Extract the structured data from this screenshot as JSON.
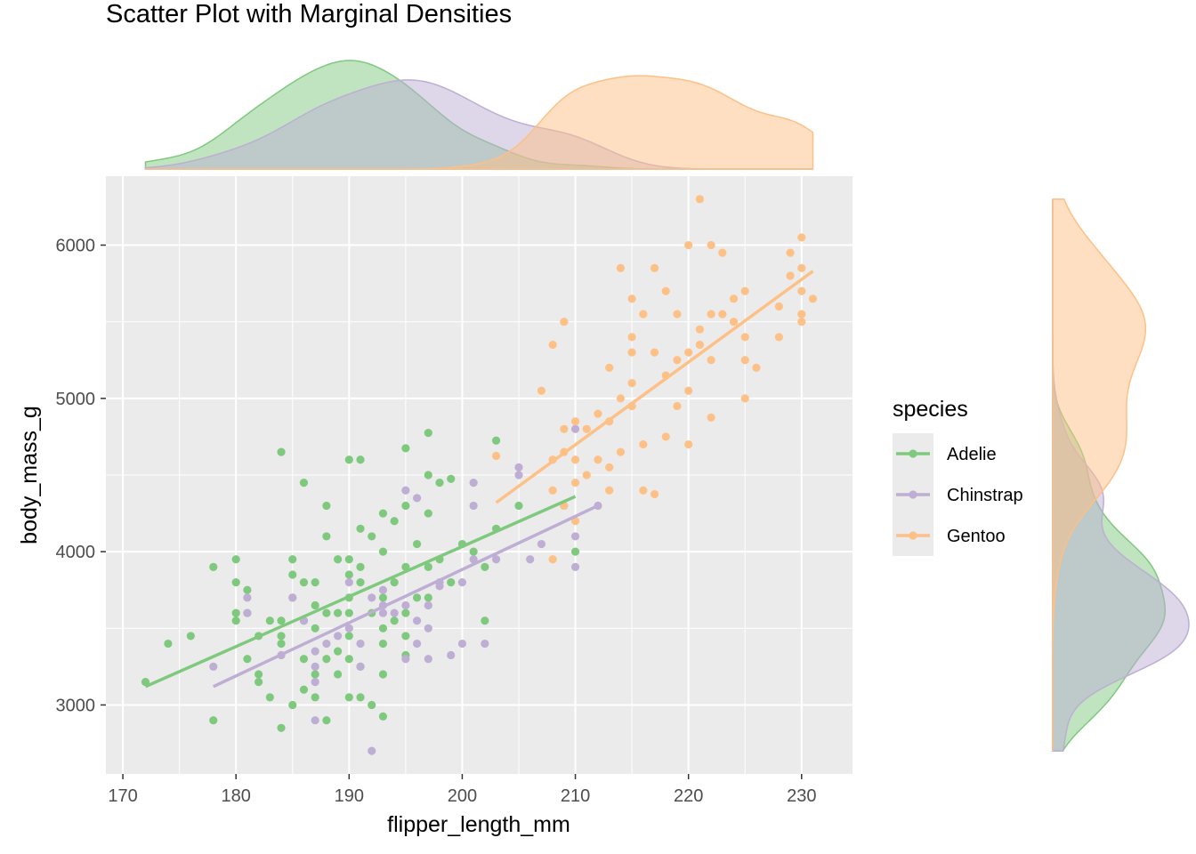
{
  "chart_data": {
    "type": "scatter",
    "title": "Scatter Plot with Marginal Densities",
    "xlabel": "flipper_length_mm",
    "ylabel": "body_mass_g",
    "xlim": [
      168.5,
      234.5
    ],
    "ylim": [
      2550,
      6450
    ],
    "xticks": [
      170,
      180,
      190,
      200,
      210,
      220,
      230
    ],
    "yticks": [
      3000,
      4000,
      5000,
      6000
    ],
    "grid": true,
    "legend": {
      "title": "species",
      "position": "right"
    },
    "marginal": {
      "top": "density of flipper_length_mm by species",
      "right": "density of body_mass_g by species"
    },
    "series": [
      {
        "name": "Adelie",
        "color": "#7fc97f",
        "trend": {
          "x": [
            172,
            210
          ],
          "y": [
            3120,
            4360
          ]
        },
        "points": [
          [
            172,
            3150
          ],
          [
            174,
            3400
          ],
          [
            176,
            3450
          ],
          [
            178,
            3900
          ],
          [
            178,
            2900
          ],
          [
            180,
            3950
          ],
          [
            180,
            3800
          ],
          [
            180,
            3600
          ],
          [
            180,
            3550
          ],
          [
            181,
            3300
          ],
          [
            181,
            3750
          ],
          [
            181,
            3600
          ],
          [
            182,
            3200
          ],
          [
            182,
            3150
          ],
          [
            182,
            3450
          ],
          [
            183,
            3550
          ],
          [
            183,
            3050
          ],
          [
            184,
            4650
          ],
          [
            184,
            3550
          ],
          [
            184,
            3400
          ],
          [
            184,
            3450
          ],
          [
            184,
            2850
          ],
          [
            185,
            3850
          ],
          [
            185,
            3950
          ],
          [
            185,
            3000
          ],
          [
            185,
            3700
          ],
          [
            186,
            4450
          ],
          [
            186,
            3800
          ],
          [
            186,
            3550
          ],
          [
            186,
            3300
          ],
          [
            186,
            3100
          ],
          [
            187,
            3800
          ],
          [
            187,
            3500
          ],
          [
            187,
            3200
          ],
          [
            187,
            3050
          ],
          [
            187,
            3650
          ],
          [
            188,
            4300
          ],
          [
            188,
            4100
          ],
          [
            188,
            3600
          ],
          [
            188,
            2900
          ],
          [
            188,
            3300
          ],
          [
            189,
            3950
          ],
          [
            189,
            3600
          ],
          [
            189,
            3350
          ],
          [
            189,
            3200
          ],
          [
            190,
            4600
          ],
          [
            190,
            3950
          ],
          [
            190,
            3850
          ],
          [
            190,
            3700
          ],
          [
            190,
            3600
          ],
          [
            190,
            3450
          ],
          [
            190,
            3300
          ],
          [
            190,
            3050
          ],
          [
            191,
            4600
          ],
          [
            191,
            4150
          ],
          [
            191,
            3900
          ],
          [
            191,
            3800
          ],
          [
            191,
            3250
          ],
          [
            191,
            3050
          ],
          [
            192,
            4100
          ],
          [
            192,
            3600
          ],
          [
            192,
            3000
          ],
          [
            193,
            4250
          ],
          [
            193,
            4000
          ],
          [
            193,
            3700
          ],
          [
            193,
            3500
          ],
          [
            193,
            3400
          ],
          [
            193,
            3200
          ],
          [
            193,
            2925
          ],
          [
            194,
            4200
          ],
          [
            194,
            3800
          ],
          [
            194,
            3550
          ],
          [
            195,
            4675
          ],
          [
            195,
            4300
          ],
          [
            195,
            3900
          ],
          [
            195,
            3600
          ],
          [
            195,
            3450
          ],
          [
            195,
            3325
          ],
          [
            196,
            4050
          ],
          [
            196,
            3700
          ],
          [
            197,
            4775
          ],
          [
            197,
            4500
          ],
          [
            197,
            4250
          ],
          [
            197,
            3900
          ],
          [
            197,
            3700
          ],
          [
            198,
            4450
          ],
          [
            198,
            3950
          ],
          [
            199,
            4475
          ],
          [
            199,
            3800
          ],
          [
            200,
            4050
          ],
          [
            201,
            4000
          ],
          [
            202,
            3550
          ],
          [
            202,
            3900
          ],
          [
            203,
            4725
          ],
          [
            203,
            4150
          ],
          [
            205,
            4300
          ],
          [
            210,
            4000
          ]
        ]
      },
      {
        "name": "Chinstrap",
        "color": "#beaed4",
        "trend": {
          "x": [
            178,
            212
          ],
          "y": [
            3120,
            4300
          ]
        },
        "points": [
          [
            178,
            3250
          ],
          [
            181,
            3700
          ],
          [
            181,
            3600
          ],
          [
            184,
            3325
          ],
          [
            185,
            3700
          ],
          [
            186,
            3550
          ],
          [
            187,
            3350
          ],
          [
            187,
            3250
          ],
          [
            187,
            3150
          ],
          [
            187,
            2900
          ],
          [
            188,
            3400
          ],
          [
            189,
            3450
          ],
          [
            190,
            3800
          ],
          [
            190,
            3500
          ],
          [
            191,
            3400
          ],
          [
            191,
            3250
          ],
          [
            192,
            3700
          ],
          [
            192,
            2700
          ],
          [
            193,
            3750
          ],
          [
            193,
            3650
          ],
          [
            193,
            3600
          ],
          [
            194,
            3600
          ],
          [
            195,
            4400
          ],
          [
            195,
            3650
          ],
          [
            195,
            3300
          ],
          [
            196,
            4350
          ],
          [
            196,
            3550
          ],
          [
            196,
            3400
          ],
          [
            197,
            3300
          ],
          [
            197,
            3500
          ],
          [
            197,
            3650
          ],
          [
            198,
            3800
          ],
          [
            198,
            3775
          ],
          [
            199,
            3325
          ],
          [
            200,
            3400
          ],
          [
            200,
            3800
          ],
          [
            201,
            4450
          ],
          [
            201,
            4300
          ],
          [
            201,
            3950
          ],
          [
            202,
            3400
          ],
          [
            203,
            3950
          ],
          [
            205,
            4550
          ],
          [
            205,
            4500
          ],
          [
            206,
            3950
          ],
          [
            207,
            4050
          ],
          [
            209,
            4300
          ],
          [
            210,
            4800
          ],
          [
            210,
            4100
          ],
          [
            210,
            3900
          ],
          [
            212,
            4300
          ]
        ]
      },
      {
        "name": "Gentoo",
        "color": "#fdc086",
        "trend": {
          "x": [
            203,
            231
          ],
          "y": [
            4320,
            5830
          ]
        },
        "points": [
          [
            203,
            4625
          ],
          [
            207,
            5050
          ],
          [
            208,
            5350
          ],
          [
            208,
            4600
          ],
          [
            208,
            4400
          ],
          [
            208,
            3950
          ],
          [
            209,
            5500
          ],
          [
            209,
            4800
          ],
          [
            209,
            4650
          ],
          [
            209,
            4300
          ],
          [
            210,
            4850
          ],
          [
            210,
            4600
          ],
          [
            210,
            4450
          ],
          [
            210,
            4200
          ],
          [
            211,
            4800
          ],
          [
            211,
            4500
          ],
          [
            212,
            4900
          ],
          [
            212,
            4600
          ],
          [
            213,
            5200
          ],
          [
            213,
            4850
          ],
          [
            213,
            4550
          ],
          [
            213,
            4400
          ],
          [
            214,
            5850
          ],
          [
            214,
            5000
          ],
          [
            214,
            4650
          ],
          [
            215,
            5650
          ],
          [
            215,
            5400
          ],
          [
            215,
            5300
          ],
          [
            215,
            5100
          ],
          [
            215,
            4950
          ],
          [
            216,
            5550
          ],
          [
            216,
            4700
          ],
          [
            216,
            4400
          ],
          [
            217,
            5850
          ],
          [
            217,
            5300
          ],
          [
            217,
            4375
          ],
          [
            218,
            5700
          ],
          [
            218,
            5150
          ],
          [
            218,
            4750
          ],
          [
            219,
            5550
          ],
          [
            219,
            5250
          ],
          [
            219,
            4950
          ],
          [
            220,
            6000
          ],
          [
            220,
            5300
          ],
          [
            220,
            5050
          ],
          [
            220,
            4700
          ],
          [
            221,
            6300
          ],
          [
            221,
            5450
          ],
          [
            221,
            5350
          ],
          [
            222,
            6000
          ],
          [
            222,
            5550
          ],
          [
            222,
            5250
          ],
          [
            222,
            4875
          ],
          [
            223,
            5950
          ],
          [
            223,
            5550
          ],
          [
            224,
            5650
          ],
          [
            224,
            5500
          ],
          [
            225,
            5700
          ],
          [
            225,
            5400
          ],
          [
            225,
            5250
          ],
          [
            225,
            5000
          ],
          [
            226,
            5200
          ],
          [
            228,
            5600
          ],
          [
            228,
            5400
          ],
          [
            229,
            5950
          ],
          [
            229,
            5800
          ],
          [
            230,
            6050
          ],
          [
            230,
            5850
          ],
          [
            230,
            5700
          ],
          [
            230,
            5550
          ],
          [
            230,
            5500
          ],
          [
            231,
            5650
          ]
        ]
      }
    ]
  }
}
